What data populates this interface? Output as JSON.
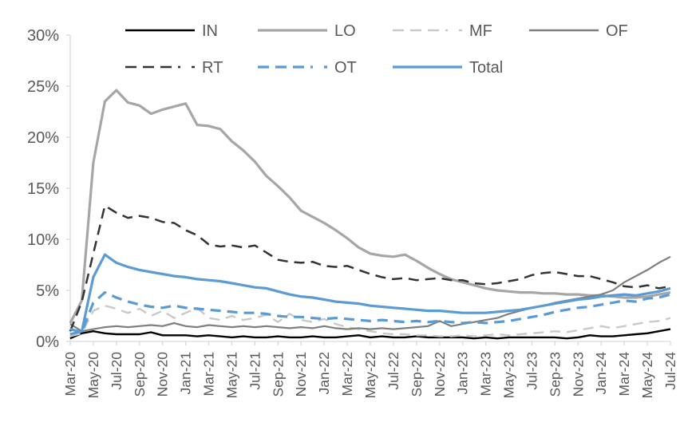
{
  "chart_data": {
    "type": "line",
    "title": "",
    "xlabel": "",
    "ylabel": "",
    "ylim": [
      0,
      30
    ],
    "y_tick_labels": [
      "0%",
      "5%",
      "10%",
      "15%",
      "20%",
      "25%",
      "30%"
    ],
    "grid": "off",
    "legend_position": "top",
    "x": [
      "Mar-20",
      "Apr-20",
      "May-20",
      "Jun-20",
      "Jul-20",
      "Aug-20",
      "Sep-20",
      "Oct-20",
      "Nov-20",
      "Dec-20",
      "Jan-21",
      "Feb-21",
      "Mar-21",
      "Apr-21",
      "May-21",
      "Jun-21",
      "Jul-21",
      "Aug-21",
      "Sep-21",
      "Oct-21",
      "Nov-21",
      "Dec-21",
      "Jan-22",
      "Feb-22",
      "Mar-22",
      "Apr-22",
      "May-22",
      "Jun-22",
      "Jul-22",
      "Aug-22",
      "Sep-22",
      "Oct-22",
      "Nov-22",
      "Dec-22",
      "Jan-23",
      "Feb-23",
      "Mar-23",
      "Apr-23",
      "May-23",
      "Jun-23",
      "Jul-23",
      "Aug-23",
      "Sep-23",
      "Oct-23",
      "Nov-23",
      "Dec-23",
      "Jan-24",
      "Feb-24",
      "Mar-24",
      "Apr-24",
      "May-24",
      "Jun-24",
      "Jul-24"
    ],
    "x_tick_labels": [
      "Mar-20",
      "May-20",
      "Jul-20",
      "Sep-20",
      "Nov-20",
      "Jan-21",
      "Mar-21",
      "May-21",
      "Jul-21",
      "Sep-21",
      "Nov-21",
      "Jan-22",
      "Mar-22",
      "May-22",
      "Jul-22",
      "Sep-22",
      "Nov-22",
      "Jan-23",
      "Mar-23",
      "May-23",
      "Jul-23",
      "Sep-23",
      "Nov-23",
      "Jan-24",
      "Mar-24",
      "May-24",
      "Jul-24"
    ],
    "series": [
      {
        "name": "IN",
        "color": "#000000",
        "style": "solid",
        "width": 2.4,
        "values": [
          0.3,
          0.8,
          1.0,
          0.8,
          0.7,
          0.7,
          0.7,
          0.9,
          0.6,
          0.6,
          0.6,
          0.5,
          0.6,
          0.5,
          0.4,
          0.5,
          0.4,
          0.4,
          0.5,
          0.4,
          0.4,
          0.5,
          0.4,
          0.4,
          0.5,
          0.6,
          0.4,
          0.5,
          0.4,
          0.4,
          0.5,
          0.4,
          0.4,
          0.4,
          0.4,
          0.3,
          0.4,
          0.3,
          0.4,
          0.4,
          0.4,
          0.4,
          0.4,
          0.3,
          0.4,
          0.6,
          0.5,
          0.5,
          0.6,
          0.7,
          0.8,
          1.0,
          1.2
        ]
      },
      {
        "name": "LO",
        "color": "#A6A6A6",
        "style": "solid",
        "width": 3.2,
        "values": [
          1.8,
          4.0,
          17.5,
          23.5,
          24.6,
          23.4,
          23.1,
          22.3,
          22.7,
          23.0,
          23.3,
          21.2,
          21.1,
          20.8,
          19.6,
          18.7,
          17.6,
          16.2,
          15.2,
          14.1,
          12.8,
          12.2,
          11.6,
          10.9,
          10.1,
          9.2,
          8.6,
          8.4,
          8.3,
          8.5,
          7.9,
          7.2,
          6.6,
          6.1,
          5.8,
          5.5,
          5.2,
          5.0,
          4.9,
          4.8,
          4.8,
          4.7,
          4.7,
          4.6,
          4.6,
          4.5,
          4.5,
          4.4,
          4.3,
          4.3,
          4.4,
          4.6,
          4.8
        ]
      },
      {
        "name": "MF",
        "color": "#C9C9C9",
        "style": "dashed",
        "width": 2.4,
        "values": [
          0.5,
          0.8,
          3.0,
          3.5,
          3.2,
          2.8,
          3.2,
          2.5,
          3.0,
          2.3,
          2.8,
          3.3,
          2.3,
          2.1,
          2.5,
          2.1,
          2.3,
          2.6,
          1.9,
          2.7,
          2.1,
          1.9,
          2.2,
          1.7,
          1.4,
          1.2,
          1.0,
          0.8,
          0.7,
          0.7,
          0.6,
          0.6,
          0.5,
          0.5,
          0.6,
          0.5,
          0.6,
          0.7,
          0.6,
          0.7,
          0.8,
          0.9,
          1.0,
          0.9,
          1.1,
          1.3,
          1.5,
          1.3,
          1.5,
          1.7,
          1.9,
          2.0,
          2.3
        ]
      },
      {
        "name": "OF",
        "color": "#7F7F7F",
        "style": "solid",
        "width": 2.2,
        "values": [
          1.7,
          1.0,
          1.2,
          1.4,
          1.5,
          1.4,
          1.5,
          1.6,
          1.5,
          1.8,
          1.5,
          1.4,
          1.6,
          1.5,
          1.4,
          1.5,
          1.4,
          1.5,
          1.4,
          1.3,
          1.4,
          1.3,
          1.5,
          1.3,
          1.2,
          1.3,
          1.2,
          1.3,
          1.2,
          1.3,
          1.4,
          1.5,
          2.0,
          1.5,
          1.7,
          1.9,
          2.1,
          2.3,
          2.7,
          3.0,
          3.3,
          3.5,
          3.8,
          4.0,
          4.2,
          4.4,
          4.6,
          5.0,
          5.8,
          6.4,
          7.0,
          7.7,
          8.3
        ]
      },
      {
        "name": "RT",
        "color": "#333333",
        "style": "dashed",
        "width": 2.5,
        "values": [
          1.0,
          3.9,
          8.6,
          13.3,
          12.6,
          12.1,
          12.3,
          12.1,
          11.7,
          11.6,
          10.9,
          10.4,
          9.5,
          9.3,
          9.4,
          9.2,
          9.4,
          8.7,
          8.0,
          7.8,
          7.7,
          7.8,
          7.4,
          7.3,
          7.4,
          7.0,
          6.6,
          6.3,
          6.1,
          6.2,
          6.0,
          6.1,
          6.2,
          6.0,
          6.0,
          5.7,
          5.6,
          5.7,
          5.9,
          6.1,
          6.5,
          6.7,
          6.8,
          6.6,
          6.4,
          6.4,
          6.1,
          5.8,
          5.4,
          5.3,
          5.5,
          5.2,
          5.4
        ]
      },
      {
        "name": "OT",
        "color": "#5B9BD5",
        "style": "dashed",
        "width": 3.2,
        "values": [
          1.2,
          0.9,
          3.8,
          4.8,
          4.3,
          3.9,
          3.6,
          3.4,
          3.3,
          3.5,
          3.3,
          3.2,
          3.1,
          3.0,
          2.9,
          2.8,
          2.8,
          2.7,
          2.5,
          2.4,
          2.4,
          2.3,
          2.2,
          2.3,
          2.2,
          2.1,
          2.0,
          2.1,
          2.0,
          1.9,
          2.0,
          1.9,
          2.0,
          1.9,
          1.8,
          1.9,
          1.8,
          1.9,
          2.0,
          2.2,
          2.4,
          2.6,
          2.9,
          3.1,
          3.3,
          3.4,
          3.6,
          3.8,
          4.0,
          3.9,
          4.2,
          4.3,
          4.6
        ]
      },
      {
        "name": "Total",
        "color": "#5B9BD5",
        "style": "solid",
        "width": 3.2,
        "values": [
          0.7,
          1.0,
          6.3,
          8.5,
          7.7,
          7.3,
          7.0,
          6.8,
          6.6,
          6.4,
          6.3,
          6.1,
          6.0,
          5.9,
          5.7,
          5.5,
          5.3,
          5.2,
          4.9,
          4.6,
          4.4,
          4.3,
          4.1,
          3.9,
          3.8,
          3.7,
          3.5,
          3.4,
          3.3,
          3.2,
          3.1,
          3.0,
          3.0,
          2.9,
          2.8,
          2.8,
          2.8,
          2.9,
          3.0,
          3.1,
          3.3,
          3.5,
          3.7,
          3.9,
          4.1,
          4.2,
          4.4,
          4.5,
          4.6,
          4.5,
          4.7,
          4.9,
          5.2
        ]
      }
    ],
    "legend_rows": [
      [
        "IN",
        "LO",
        "MF",
        "OF"
      ],
      [
        "RT",
        "OT",
        "Total"
      ]
    ]
  },
  "theme": {
    "axis_line_color": "#D9D9D9",
    "tick_color": "#D9D9D9",
    "axis_label_color": "#595959",
    "legend_text_color": "#595959",
    "background": "#FFFFFF"
  }
}
